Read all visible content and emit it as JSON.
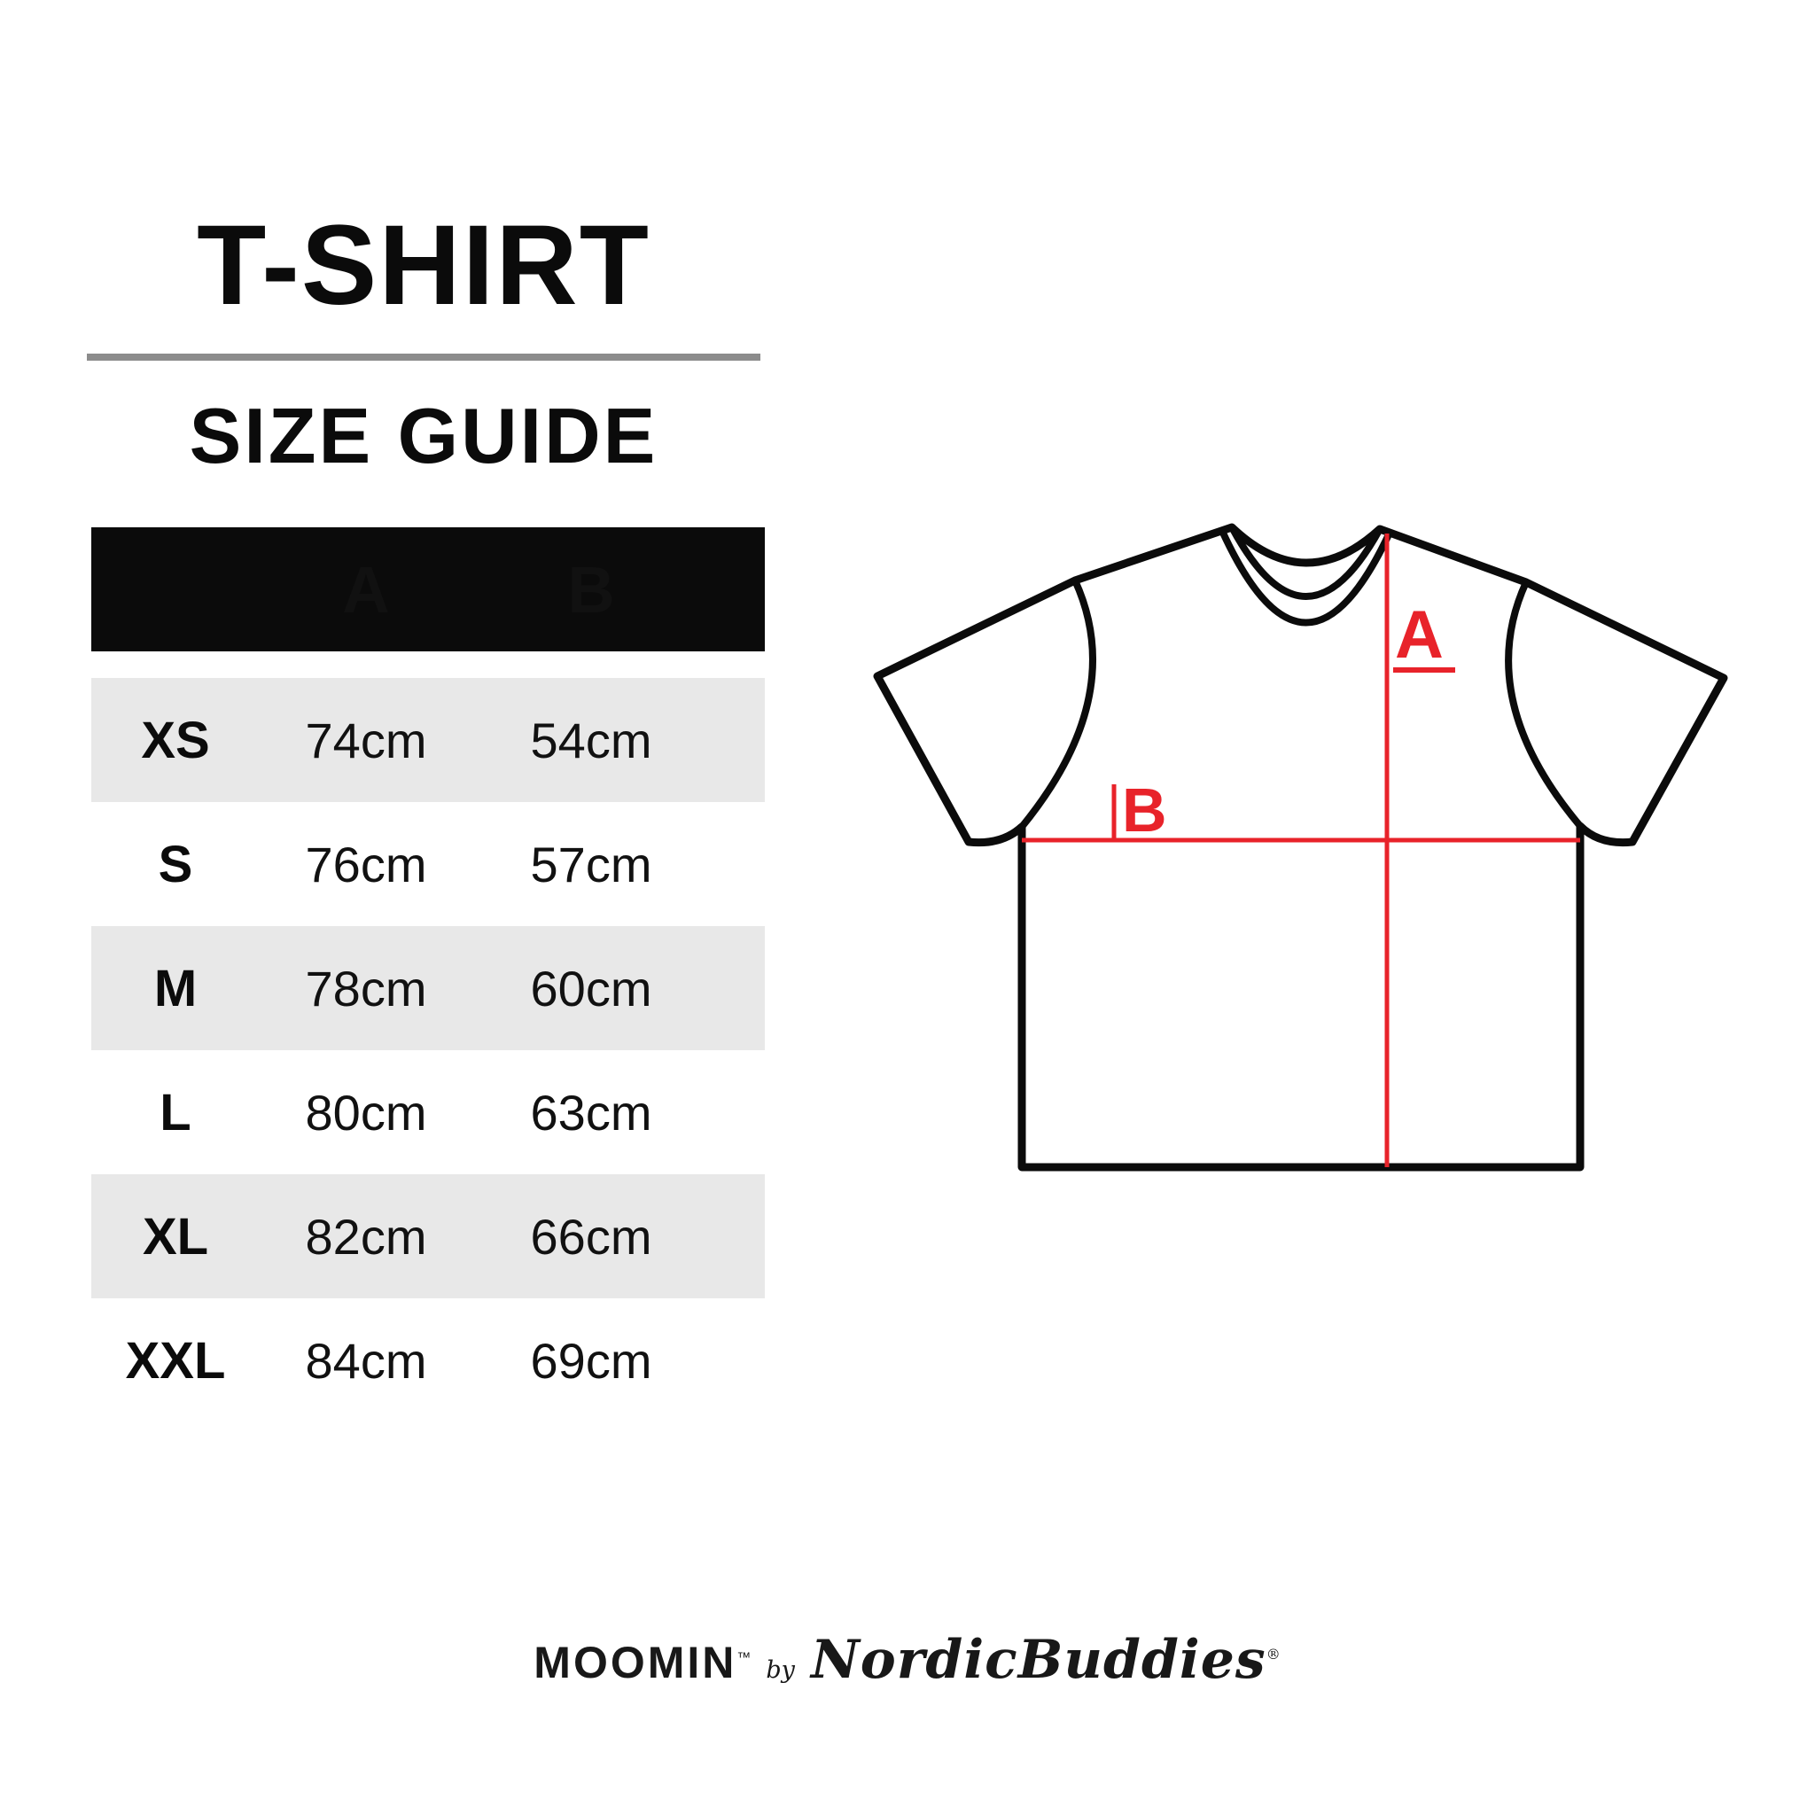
{
  "title": "T-SHIRT",
  "subtitle": "SIZE GUIDE",
  "table": {
    "header": {
      "size": "",
      "a": "A",
      "b": "B"
    },
    "rows": [
      {
        "size": "XS",
        "a": "74cm",
        "b": "54cm"
      },
      {
        "size": "S",
        "a": "76cm",
        "b": "57cm"
      },
      {
        "size": "M",
        "a": "78cm",
        "b": "60cm"
      },
      {
        "size": "L",
        "a": "80cm",
        "b": "63cm"
      },
      {
        "size": "XL",
        "a": "82cm",
        "b": "66cm"
      },
      {
        "size": "XXL",
        "a": "84cm",
        "b": "69cm"
      }
    ]
  },
  "diagram": {
    "label_a": "A",
    "label_b": "B"
  },
  "footer": {
    "brand": "MOOMIN",
    "brand_mark": "™",
    "by": "by",
    "maker": "NordicBuddies",
    "maker_mark": "®"
  },
  "colors": {
    "accent_red": "#e8232a",
    "header_black": "#0b0b0b",
    "row_gray": "#e8e8e8",
    "divider_gray": "#8c8c8c",
    "background": "#ffffff"
  }
}
